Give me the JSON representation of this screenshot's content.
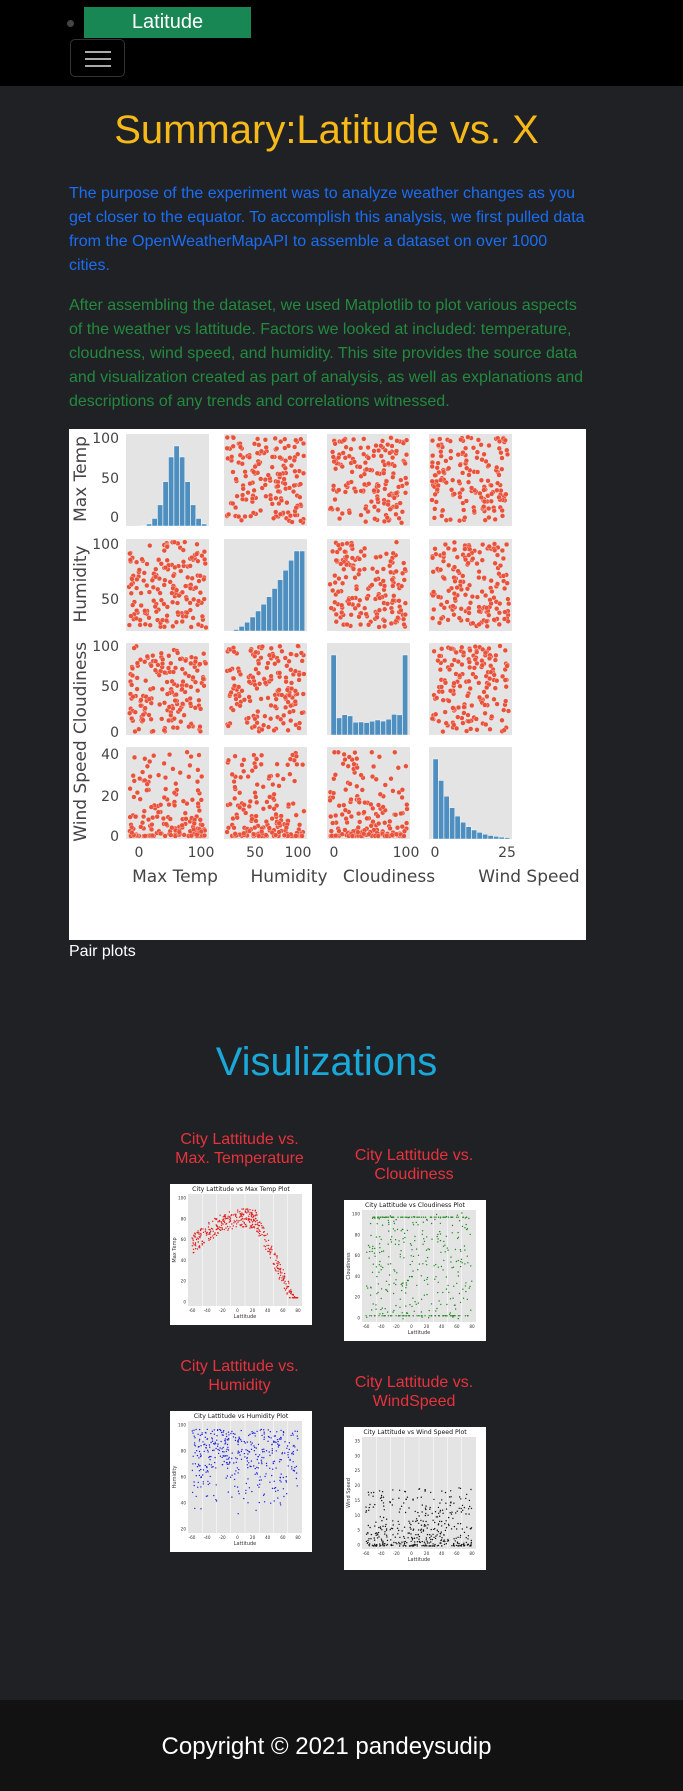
{
  "nav": {
    "brand": "Latitude"
  },
  "summary": {
    "title": "Summary:Latitude vs. X",
    "purpose": "The purpose of the experiment was to analyze weather changes as you get closer to the equator. To accomplish this analysis, we first pulled data from the OpenWeatherMapAPI to assemble a dataset on over 1000 cities.",
    "method": "After assembling the dataset, we used Matplotlib to plot various aspects of the weather vs lattitude. Factors we looked at included: temperature, cloudness, wind speed, and humidity. This site provides the source data and visualization created as part of analysis, as well as explanations and descriptions of any trends and correlations witnessed."
  },
  "pairplot": {
    "caption": "Pair plots",
    "vars": [
      "Max Temp",
      "Humidity",
      "Cloudiness",
      "Wind Speed"
    ],
    "yticks": [
      [
        "0",
        "50",
        "100"
      ],
      [
        "50",
        "100"
      ],
      [
        "0",
        "50",
        "100"
      ],
      [
        "0",
        "20",
        "40"
      ]
    ],
    "xticks": [
      [
        "0",
        "100"
      ],
      [
        "50",
        "100"
      ],
      [
        "0",
        "100"
      ],
      [
        "0",
        "25"
      ]
    ]
  },
  "visualizations": {
    "title": "Visulizations",
    "plots": [
      {
        "heading": "City Lattitude vs. Max. Temperature",
        "plot_title": "City Lattitude vs Max Temp Plot",
        "xlabel": "Lattitude",
        "ylabel": "Max Temp",
        "color": "#e0201f",
        "yticks": [
          "100",
          "80",
          "60",
          "40",
          "20",
          "0"
        ]
      },
      {
        "heading": "City Lattitude vs. Cloudiness",
        "plot_title": "City Lattitude vs Cloudiness Plot",
        "xlabel": "Lattitude",
        "ylabel": "Cloudiness",
        "color": "#1e8a1e",
        "yticks": [
          "100",
          "80",
          "60",
          "40",
          "20",
          "0"
        ]
      },
      {
        "heading": "City Lattitude vs. Humidity",
        "plot_title": "City Lattitude vs Humidity Plot",
        "xlabel": "Lattitude",
        "ylabel": "Humidity",
        "color": "#2020e0",
        "yticks": [
          "100",
          "80",
          "60",
          "40",
          "20"
        ]
      },
      {
        "heading": "City Lattitude vs. WindSpeed",
        "plot_title": "City Lattitude vs Wind Speed Plot",
        "xlabel": "Lattitude",
        "ylabel": "Wind Speed",
        "color": "#111111",
        "yticks": [
          "35",
          "30",
          "25",
          "20",
          "15",
          "10",
          "5",
          "0"
        ]
      }
    ],
    "xticks": [
      "-60",
      "-40",
      "-20",
      "0",
      "20",
      "40",
      "60",
      "80"
    ]
  },
  "footer": {
    "copyright": "Copyright © 2021 pandeysudip"
  },
  "colors": {
    "nav_bg": "#000000",
    "brand_bg": "#198754",
    "title": "#f7b917",
    "purpose": "#1b6ef3",
    "method": "#238a3e",
    "vis_title": "#1aa8d8",
    "plot_heading": "#e8323c",
    "body_bg": "#1f2125",
    "hist": "#4f8fc0",
    "scatter": "#e8513a"
  }
}
